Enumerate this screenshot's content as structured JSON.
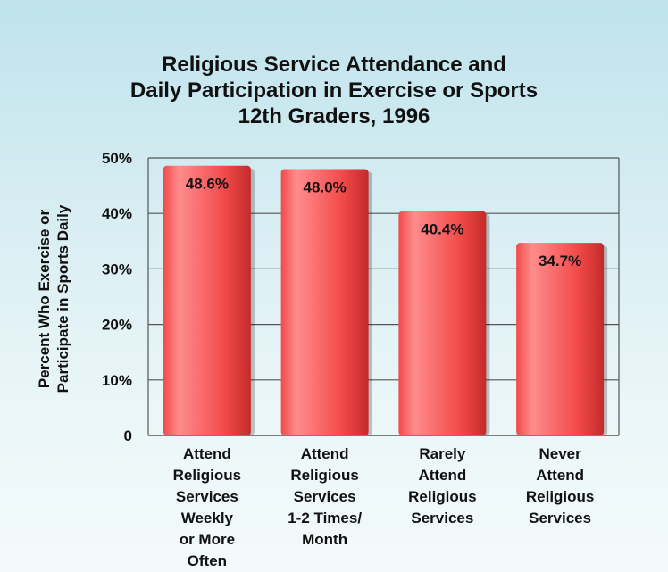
{
  "chart_data": {
    "type": "bar",
    "title_lines": [
      "Religious Service Attendance and",
      "Daily Participation in Exercise or Sports",
      "12th Graders, 1996"
    ],
    "ylabel_lines": [
      "Percent Who Exercise or",
      "Participate in Sports Daily"
    ],
    "xlabel": "",
    "categories": [
      "Attend Religious Services Weekly or More Often",
      "Attend Religious Services 1-2 Times/ Month",
      "Rarely Attend Religious Services",
      "Never Attend Religious Services"
    ],
    "category_lines": [
      [
        "Attend",
        "Religious",
        "Services",
        "Weekly",
        "or More",
        "Often"
      ],
      [
        "Attend",
        "Religious",
        "Services",
        "1-2 Times/",
        "Month"
      ],
      [
        "Rarely",
        "Attend",
        "Religious",
        "Services"
      ],
      [
        "Never",
        "Attend",
        "Religious",
        "Services"
      ]
    ],
    "values": [
      48.6,
      48.0,
      40.4,
      34.7
    ],
    "data_labels": [
      "48.6%",
      "48.0%",
      "40.4%",
      "34.7%"
    ],
    "ylim": [
      0,
      50
    ],
    "yticks": [
      0,
      10,
      20,
      30,
      40,
      50
    ],
    "ytick_labels": [
      "0",
      "10%",
      "20%",
      "30%",
      "40%",
      "50%"
    ],
    "grid": true,
    "legend": "none",
    "colors": {
      "bar": "#f24a4a",
      "bar_highlight": "#ff8c8c",
      "bar_shadow": "#c42a2a",
      "grid": "#555555",
      "background_top": "#bfe3ec",
      "background_bottom": "#f3fafb"
    }
  }
}
